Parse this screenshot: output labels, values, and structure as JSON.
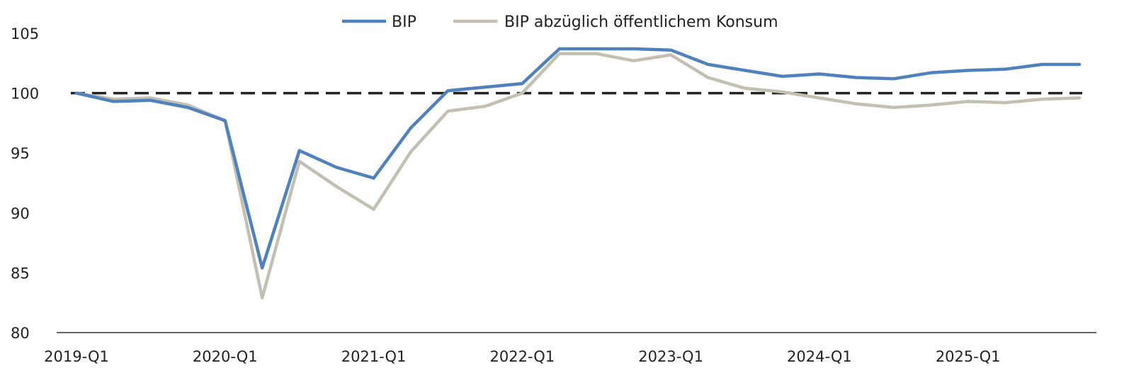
{
  "chart_data": {
    "type": "line",
    "title": "",
    "xlabel": "",
    "ylabel": "",
    "ylim": [
      80,
      105
    ],
    "y_ticks": [
      105,
      100,
      95,
      90,
      85,
      80
    ],
    "x_tick_labels": [
      "2019-Q1",
      "2020-Q1",
      "2021-Q1",
      "2022-Q1",
      "2023-Q1",
      "2024-Q1",
      "2025-Q1"
    ],
    "x": [
      "2019-Q1",
      "2019-Q2",
      "2019-Q3",
      "2019-Q4",
      "2020-Q1",
      "2020-Q2",
      "2020-Q3",
      "2020-Q4",
      "2021-Q1",
      "2021-Q2",
      "2021-Q3",
      "2021-Q4",
      "2022-Q1",
      "2022-Q2",
      "2022-Q3",
      "2022-Q4",
      "2023-Q1",
      "2023-Q2",
      "2023-Q3",
      "2023-Q4",
      "2024-Q1",
      "2024-Q2",
      "2024-Q3",
      "2024-Q4",
      "2025-Q1",
      "2025-Q2",
      "2025-Q3",
      "2025-Q4"
    ],
    "reference_line": {
      "y": 100,
      "style": "dashed",
      "color": "#222222"
    },
    "legend_position": "top-center",
    "grid": false,
    "series": [
      {
        "name": "BIP",
        "color": "#4f81bd",
        "values": [
          100.0,
          99.3,
          99.4,
          98.8,
          97.7,
          85.4,
          95.2,
          93.8,
          92.9,
          97.1,
          100.2,
          100.5,
          100.8,
          103.7,
          103.7,
          103.7,
          103.6,
          102.4,
          101.9,
          101.4,
          101.6,
          101.3,
          101.2,
          101.7,
          101.9,
          102.0,
          102.4,
          102.4
        ]
      },
      {
        "name": "BIP abzüglich öffentlichem Konsum",
        "color": "#c4bfb3",
        "values": [
          100.0,
          99.5,
          99.6,
          99.0,
          97.7,
          82.9,
          94.3,
          92.2,
          90.3,
          95.1,
          98.5,
          98.9,
          100.0,
          103.3,
          103.3,
          102.7,
          103.2,
          101.3,
          100.4,
          100.1,
          99.6,
          99.1,
          98.8,
          99.0,
          99.3,
          99.2,
          99.5,
          99.6
        ]
      }
    ]
  }
}
